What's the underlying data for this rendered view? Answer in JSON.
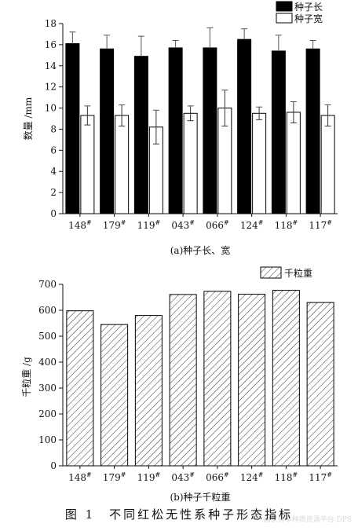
{
  "caption": "图 1　不同红松无性系种子形态指标",
  "watermark": "国家林草种质资源平台 DPS",
  "chart_data": [
    {
      "type": "bar",
      "subtitle": "(a)种子长、宽",
      "ylabel": "数量 /mm",
      "ylim": [
        0,
        18
      ],
      "yticks": [
        0,
        2,
        4,
        6,
        8,
        10,
        12,
        14,
        16,
        18
      ],
      "categories": [
        "148#",
        "179#",
        "119#",
        "043#",
        "066#",
        "124#",
        "118#",
        "117#"
      ],
      "legend_position": "top-right",
      "series": [
        {
          "name": "种子长",
          "color": "#000000",
          "values": [
            16.1,
            15.6,
            14.9,
            15.7,
            15.7,
            16.5,
            15.4,
            15.6
          ],
          "errors": [
            1.1,
            1.3,
            1.9,
            0.7,
            1.9,
            1.0,
            1.5,
            0.8
          ]
        },
        {
          "name": "种子宽",
          "color": "#ffffff",
          "values": [
            9.3,
            9.3,
            8.2,
            9.5,
            10.0,
            9.5,
            9.6,
            9.3
          ],
          "errors": [
            0.9,
            1.0,
            1.6,
            0.7,
            1.7,
            0.6,
            1.0,
            1.0
          ]
        }
      ]
    },
    {
      "type": "bar",
      "subtitle": "(b)种子千粒重",
      "ylabel": "千粒重 /g",
      "ylim": [
        0,
        700
      ],
      "yticks": [
        0,
        100,
        200,
        300,
        400,
        500,
        600,
        700
      ],
      "categories": [
        "148#",
        "179#",
        "119#",
        "043#",
        "066#",
        "124#",
        "118#",
        "117#"
      ],
      "legend_position": "top-right",
      "series": [
        {
          "name": "千粒重",
          "pattern": "diagonal-hatch",
          "values": [
            598,
            545,
            580,
            661,
            673,
            662,
            677,
            630
          ]
        }
      ]
    }
  ]
}
